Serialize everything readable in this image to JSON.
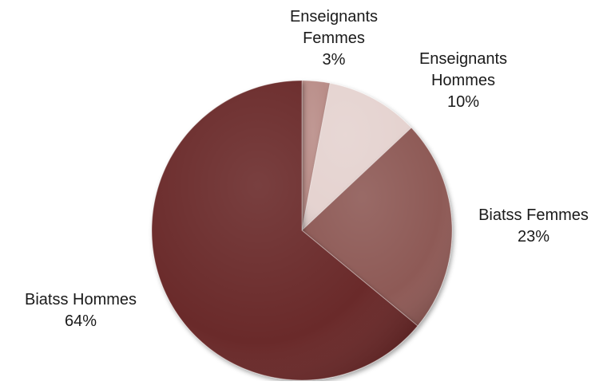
{
  "chart_data": {
    "type": "pie",
    "title": "",
    "slices": [
      {
        "label_lines": [
          "Enseignants",
          "Femmes"
        ],
        "value": 3,
        "value_label": "3%",
        "color": "#B98D88"
      },
      {
        "label_lines": [
          "Enseignants",
          "Hommes"
        ],
        "value": 10,
        "value_label": "10%",
        "color": "#E5D3D0"
      },
      {
        "label_lines": [
          "Biatss Femmes"
        ],
        "value": 23,
        "value_label": "23%",
        "color": "#8E5A57"
      },
      {
        "label_lines": [
          "Biatss Hommes"
        ],
        "value": 64,
        "value_label": "64%",
        "color": "#6B2B2A"
      }
    ],
    "start_position": "top",
    "direction": "clockwise",
    "legend": "none",
    "label_style": "category name and percentage outside slices"
  }
}
